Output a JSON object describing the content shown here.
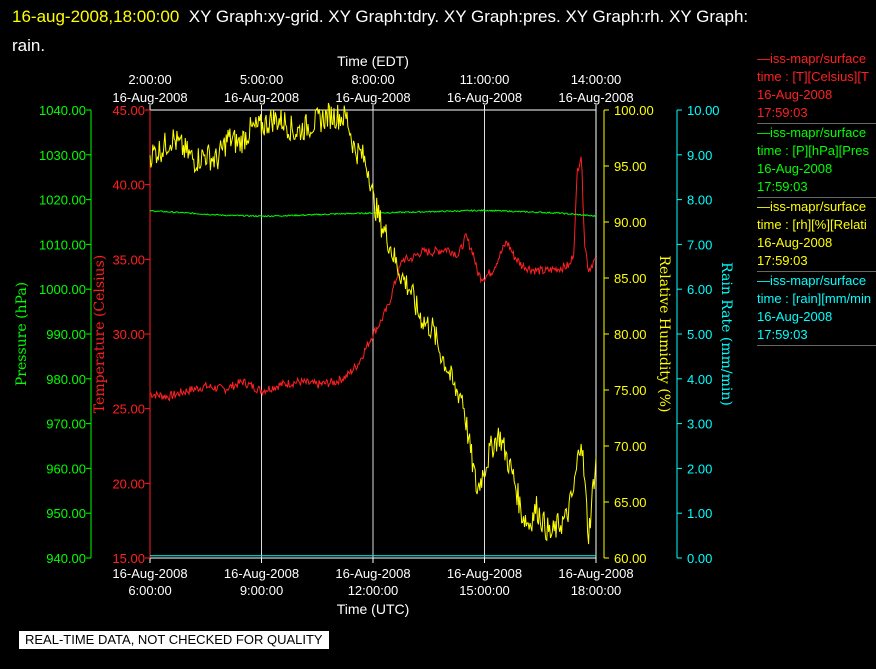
{
  "header": {
    "timestamp": "16-aug-2008,18:00:00",
    "title": "XY Graph:xy-grid.  XY Graph:tdry.  XY Graph:pres.  XY Graph:rh.  XY Graph:",
    "title_cont": "rain."
  },
  "banner": "REAL-TIME DATA, NOT CHECKED FOR QUALITY",
  "legend": [
    {
      "name": "—iss-mapr/surface",
      "line2": "time : [T][Celsius][T",
      "date": "16-Aug-2008",
      "time": "17:59:03",
      "color": "#ff2020"
    },
    {
      "name": "—iss-mapr/surface",
      "line2": "time : [P][hPa][Pres",
      "date": "16-Aug-2008",
      "time": "17:59:03",
      "color": "#00ff00"
    },
    {
      "name": "—iss-mapr/surface",
      "line2": "time : [rh][%][Relati",
      "date": "16-Aug-2008",
      "time": "17:59:03",
      "color": "#ffff00"
    },
    {
      "name": "—iss-mapr/surface",
      "line2": "time : [rain][mm/min",
      "date": "16-Aug-2008",
      "time": "17:59:03",
      "color": "#00ffff"
    }
  ],
  "chart_data": {
    "type": "line",
    "top_axis": {
      "label": "Time (EDT)",
      "ticks": [
        {
          "time": "2:00:00",
          "date": "16-Aug-2008"
        },
        {
          "time": "5:00:00",
          "date": "16-Aug-2008"
        },
        {
          "time": "8:00:00",
          "date": "16-Aug-2008"
        },
        {
          "time": "11:00:00",
          "date": "16-Aug-2008"
        },
        {
          "time": "14:00:00",
          "date": "16-Aug-2008"
        }
      ]
    },
    "bottom_axis": {
      "label": "Time (UTC)",
      "xlim": [
        6,
        18
      ],
      "ticks": [
        {
          "date": "16-Aug-2008",
          "time": "6:00:00"
        },
        {
          "date": "16-Aug-2008",
          "time": "9:00:00"
        },
        {
          "date": "16-Aug-2008",
          "time": "12:00:00"
        },
        {
          "date": "16-Aug-2008",
          "time": "15:00:00"
        },
        {
          "date": "16-Aug-2008",
          "time": "18:00:00"
        }
      ]
    },
    "axes": {
      "pressure": {
        "label": "Pressure (hPa)",
        "ylim": [
          940,
          1040
        ],
        "ticks": [
          "940.00",
          "950.00",
          "960.00",
          "970.00",
          "980.00",
          "990.00",
          "1000.00",
          "1010.00",
          "1020.00",
          "1030.00",
          "1040.00"
        ],
        "color": "#00ff00"
      },
      "temperature": {
        "label": "Temperature (Celsius)",
        "ylim": [
          15,
          45
        ],
        "ticks": [
          "15.00",
          "20.00",
          "25.00",
          "30.00",
          "35.00",
          "40.00",
          "45.00"
        ],
        "color": "#ff2020"
      },
      "humidity": {
        "label": "Relative Humidity (%)",
        "ylim": [
          60,
          100
        ],
        "ticks": [
          "60.00",
          "65.00",
          "70.00",
          "75.00",
          "80.00",
          "85.00",
          "90.00",
          "95.00",
          "100.00"
        ],
        "color": "#ffff00"
      },
      "rain": {
        "label": "Rain Rate (mm/min)",
        "ylim": [
          0,
          10
        ],
        "ticks": [
          "0.00",
          "1.00",
          "2.00",
          "3.00",
          "4.00",
          "5.00",
          "6.00",
          "7.00",
          "8.00",
          "9.00",
          "10.00"
        ],
        "color": "#00ffff"
      }
    },
    "series": [
      {
        "name": "temperature",
        "axis": "temperature",
        "color": "#ff2020",
        "x": [
          6,
          6.5,
          7,
          7.5,
          8,
          8.5,
          9,
          9.5,
          10,
          10.5,
          11,
          11.3,
          11.6,
          11.9,
          12,
          12.2,
          12.4,
          12.6,
          12.8,
          13,
          13.3,
          13.6,
          14,
          14.3,
          14.5,
          14.7,
          14.8,
          14.9,
          15,
          15.2,
          15.4,
          15.6,
          15.8,
          16,
          16.3,
          16.6,
          17,
          17.3,
          17.4,
          17.5,
          17.6,
          17.7,
          17.8,
          17.9,
          18
        ],
        "y": [
          26,
          25.8,
          26.2,
          26.5,
          26.3,
          26.8,
          26.2,
          26.6,
          26.8,
          26.6,
          26.8,
          27.2,
          28,
          29.5,
          30,
          30.8,
          31.8,
          33.5,
          35,
          35,
          35.5,
          35.5,
          35.7,
          35.3,
          36.5,
          35.4,
          34.2,
          33.8,
          33.8,
          34.2,
          35.2,
          36.2,
          35.2,
          34.6,
          34.3,
          34.2,
          34.4,
          34.6,
          35.5,
          41,
          42,
          36,
          34.3,
          34.7,
          35
        ]
      },
      {
        "name": "pressure",
        "axis": "pressure",
        "color": "#00ff00",
        "x": [
          6,
          7,
          8,
          9,
          10,
          11,
          12,
          13,
          14,
          15,
          16,
          17,
          18
        ],
        "y": [
          1017.5,
          1017,
          1016.5,
          1016.3,
          1016.5,
          1016.8,
          1017,
          1017.2,
          1017.4,
          1017.6,
          1017.3,
          1017,
          1016.3
        ]
      },
      {
        "name": "humidity",
        "axis": "humidity",
        "color": "#ffff00",
        "x": [
          6,
          6.3,
          6.6,
          6.9,
          7.2,
          7.5,
          7.8,
          8.1,
          8.4,
          8.7,
          9,
          9.3,
          9.6,
          9.9,
          10.2,
          10.5,
          10.8,
          11,
          11.3,
          11.5,
          11.7,
          11.9,
          12,
          12.2,
          12.4,
          12.6,
          12.8,
          13,
          13.2,
          13.4,
          13.6,
          13.8,
          14,
          14.2,
          14.4,
          14.6,
          14.8,
          15,
          15.2,
          15.4,
          15.6,
          15.8,
          16,
          16.2,
          16.4,
          16.6,
          16.8,
          17,
          17.2,
          17.4,
          17.6,
          17.8,
          18
        ],
        "y": [
          96,
          96.5,
          97.5,
          96.5,
          95.5,
          96,
          95.5,
          97.5,
          97,
          98.2,
          98.5,
          99.2,
          99,
          98,
          98.5,
          99,
          99.5,
          99.5,
          99.3,
          96.5,
          96,
          94.5,
          92,
          90,
          88.5,
          86.5,
          85,
          84,
          82,
          81,
          80.5,
          78.5,
          77,
          75,
          74.5,
          70,
          66,
          68,
          70,
          71,
          69,
          67,
          64,
          63,
          64.5,
          63,
          62,
          63,
          63.5,
          66,
          71,
          62,
          69
        ]
      },
      {
        "name": "rain",
        "axis": "rain",
        "color": "#00ffff",
        "x": [
          6,
          18
        ],
        "y": [
          0.05,
          0.05
        ]
      }
    ],
    "grid": true
  }
}
